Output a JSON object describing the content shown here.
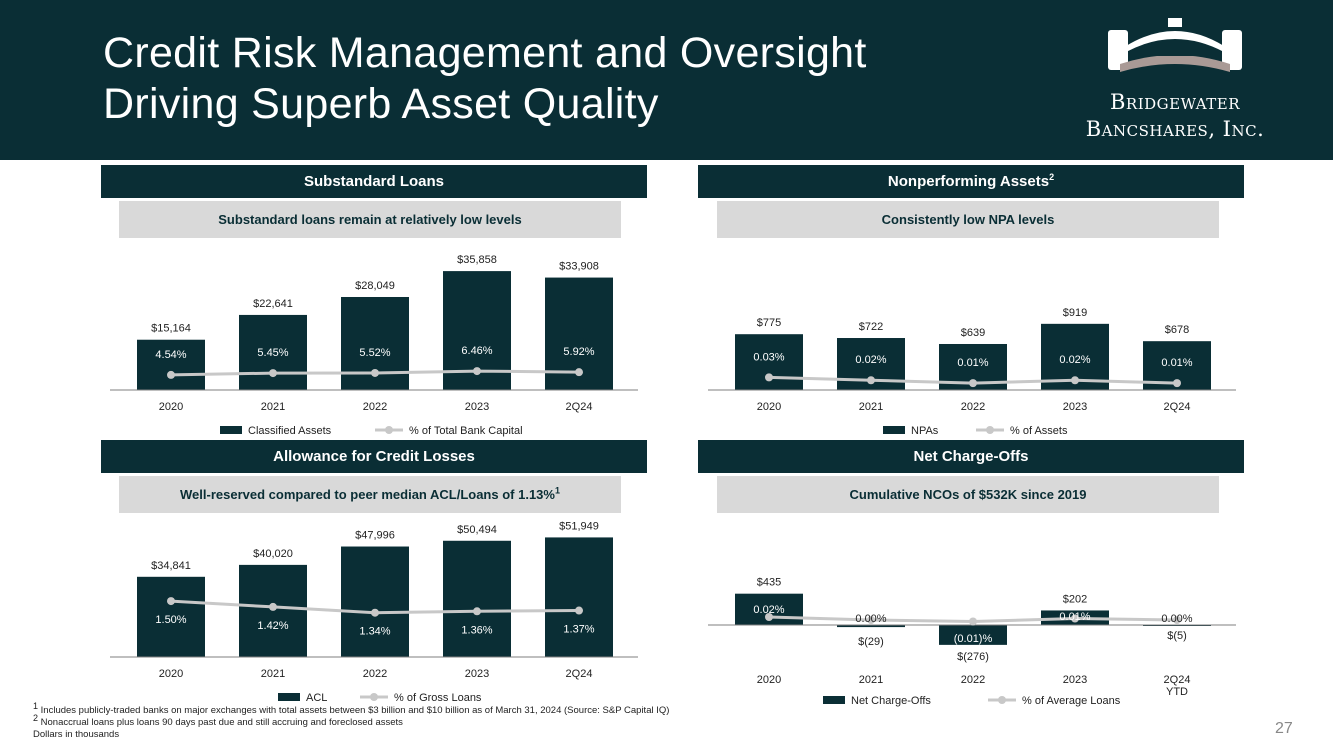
{
  "header": {
    "title_line1": "Credit Risk Management and Oversight",
    "title_line2": "Driving Superb Asset Quality",
    "brand_line1": "Bridgewater",
    "brand_line2": "Bancshares, Inc."
  },
  "colors": {
    "navy": "#0a2e35",
    "gray_band": "#d9d9d9",
    "line": "#c8c8c8"
  },
  "panels": {
    "substandard": {
      "title": "Substandard Loans",
      "subtitle": "Substandard loans remain at relatively low levels"
    },
    "npa": {
      "title": "Nonperforming Assets",
      "title_sup": "2",
      "subtitle": "Consistently low NPA levels"
    },
    "acl": {
      "title": "Allowance for Credit Losses",
      "subtitle": "Well-reserved compared to peer median ACL/Loans of 1.13%",
      "subtitle_sup": "1"
    },
    "nco": {
      "title": "Net Charge-Offs",
      "subtitle": "Cumulative NCOs of $532K since 2019"
    }
  },
  "chart_data": [
    {
      "id": "substandard",
      "type": "bar",
      "categories": [
        "2020",
        "2021",
        "2022",
        "2023",
        "2Q24"
      ],
      "series": [
        {
          "name": "Classified Assets",
          "kind": "bar",
          "values": [
            15164,
            22641,
            28049,
            35858,
            33908
          ],
          "labels": [
            "$15,164",
            "$22,641",
            "$28,049",
            "$35,858",
            "$33,908"
          ]
        },
        {
          "name": "% of Total Bank Capital",
          "kind": "line",
          "values": [
            4.54,
            5.45,
            5.52,
            6.46,
            5.92
          ],
          "labels": [
            "4.54%",
            "5.45%",
            "5.52%",
            "6.46%",
            "5.92%"
          ]
        }
      ],
      "ylim": [
        0,
        38000
      ],
      "line_ylim": [
        0,
        30
      ]
    },
    {
      "id": "npa",
      "type": "bar",
      "categories": [
        "2020",
        "2021",
        "2022",
        "2023",
        "2Q24"
      ],
      "series": [
        {
          "name": "NPAs",
          "kind": "bar",
          "values": [
            775,
            722,
            639,
            919,
            678
          ],
          "labels": [
            "$775",
            "$722",
            "$639",
            "$919",
            "$678"
          ]
        },
        {
          "name": "% of Assets",
          "kind": "line",
          "values": [
            0.03,
            0.02,
            0.01,
            0.02,
            0.01
          ],
          "labels": [
            "0.03%",
            "0.02%",
            "0.01%",
            "0.02%",
            "0.01%"
          ]
        }
      ],
      "ylim": [
        0,
        1000
      ],
      "line_ylim": [
        0,
        0.4
      ]
    },
    {
      "id": "acl",
      "type": "bar",
      "categories": [
        "2020",
        "2021",
        "2022",
        "2023",
        "2Q24"
      ],
      "series": [
        {
          "name": "ACL",
          "kind": "bar",
          "values": [
            34841,
            40020,
            47996,
            50494,
            51949
          ],
          "labels": [
            "$34,841",
            "$40,020",
            "$47,996",
            "$50,494",
            "$51,949"
          ]
        },
        {
          "name": "% of Gross Loans",
          "kind": "line",
          "values": [
            1.5,
            1.42,
            1.34,
            1.36,
            1.37
          ],
          "labels": [
            "1.50%",
            "1.42%",
            "1.34%",
            "1.36%",
            "1.37%"
          ]
        }
      ],
      "ylim": [
        0,
        53000
      ],
      "line_ylim": [
        0.8,
        1.9
      ]
    },
    {
      "id": "nco",
      "type": "bar",
      "categories": [
        "2020",
        "2021",
        "2022",
        "2023",
        "2Q24 YTD"
      ],
      "series": [
        {
          "name": "Net Charge-Offs",
          "kind": "bar",
          "values": [
            435,
            -29,
            -276,
            202,
            -5
          ],
          "labels": [
            "$435",
            "$(29)",
            "$(276)",
            "$202",
            "$(5)"
          ]
        },
        {
          "name": "% of Average Loans",
          "kind": "line",
          "values": [
            0.02,
            0.0,
            -0.01,
            0.01,
            0.0
          ],
          "labels": [
            "0.02%",
            "0.00%",
            "(0.01)%",
            "0.01%",
            "0.00%"
          ]
        }
      ],
      "ylim": [
        -300,
        500
      ],
      "line_ylim": [
        -0.1,
        0.1
      ]
    }
  ],
  "footnotes": {
    "note1": "Includes publicly-traded banks on major exchanges with total assets between $3 billion and $10 billion as of March 31, 2024 (Source: S&P Capital IQ)",
    "note2": "Nonaccrual loans plus loans 90 days past due and still accruing and foreclosed assets",
    "note3": "Dollars in thousands",
    "marker1": "1",
    "marker2": "2"
  },
  "page_number": "27"
}
